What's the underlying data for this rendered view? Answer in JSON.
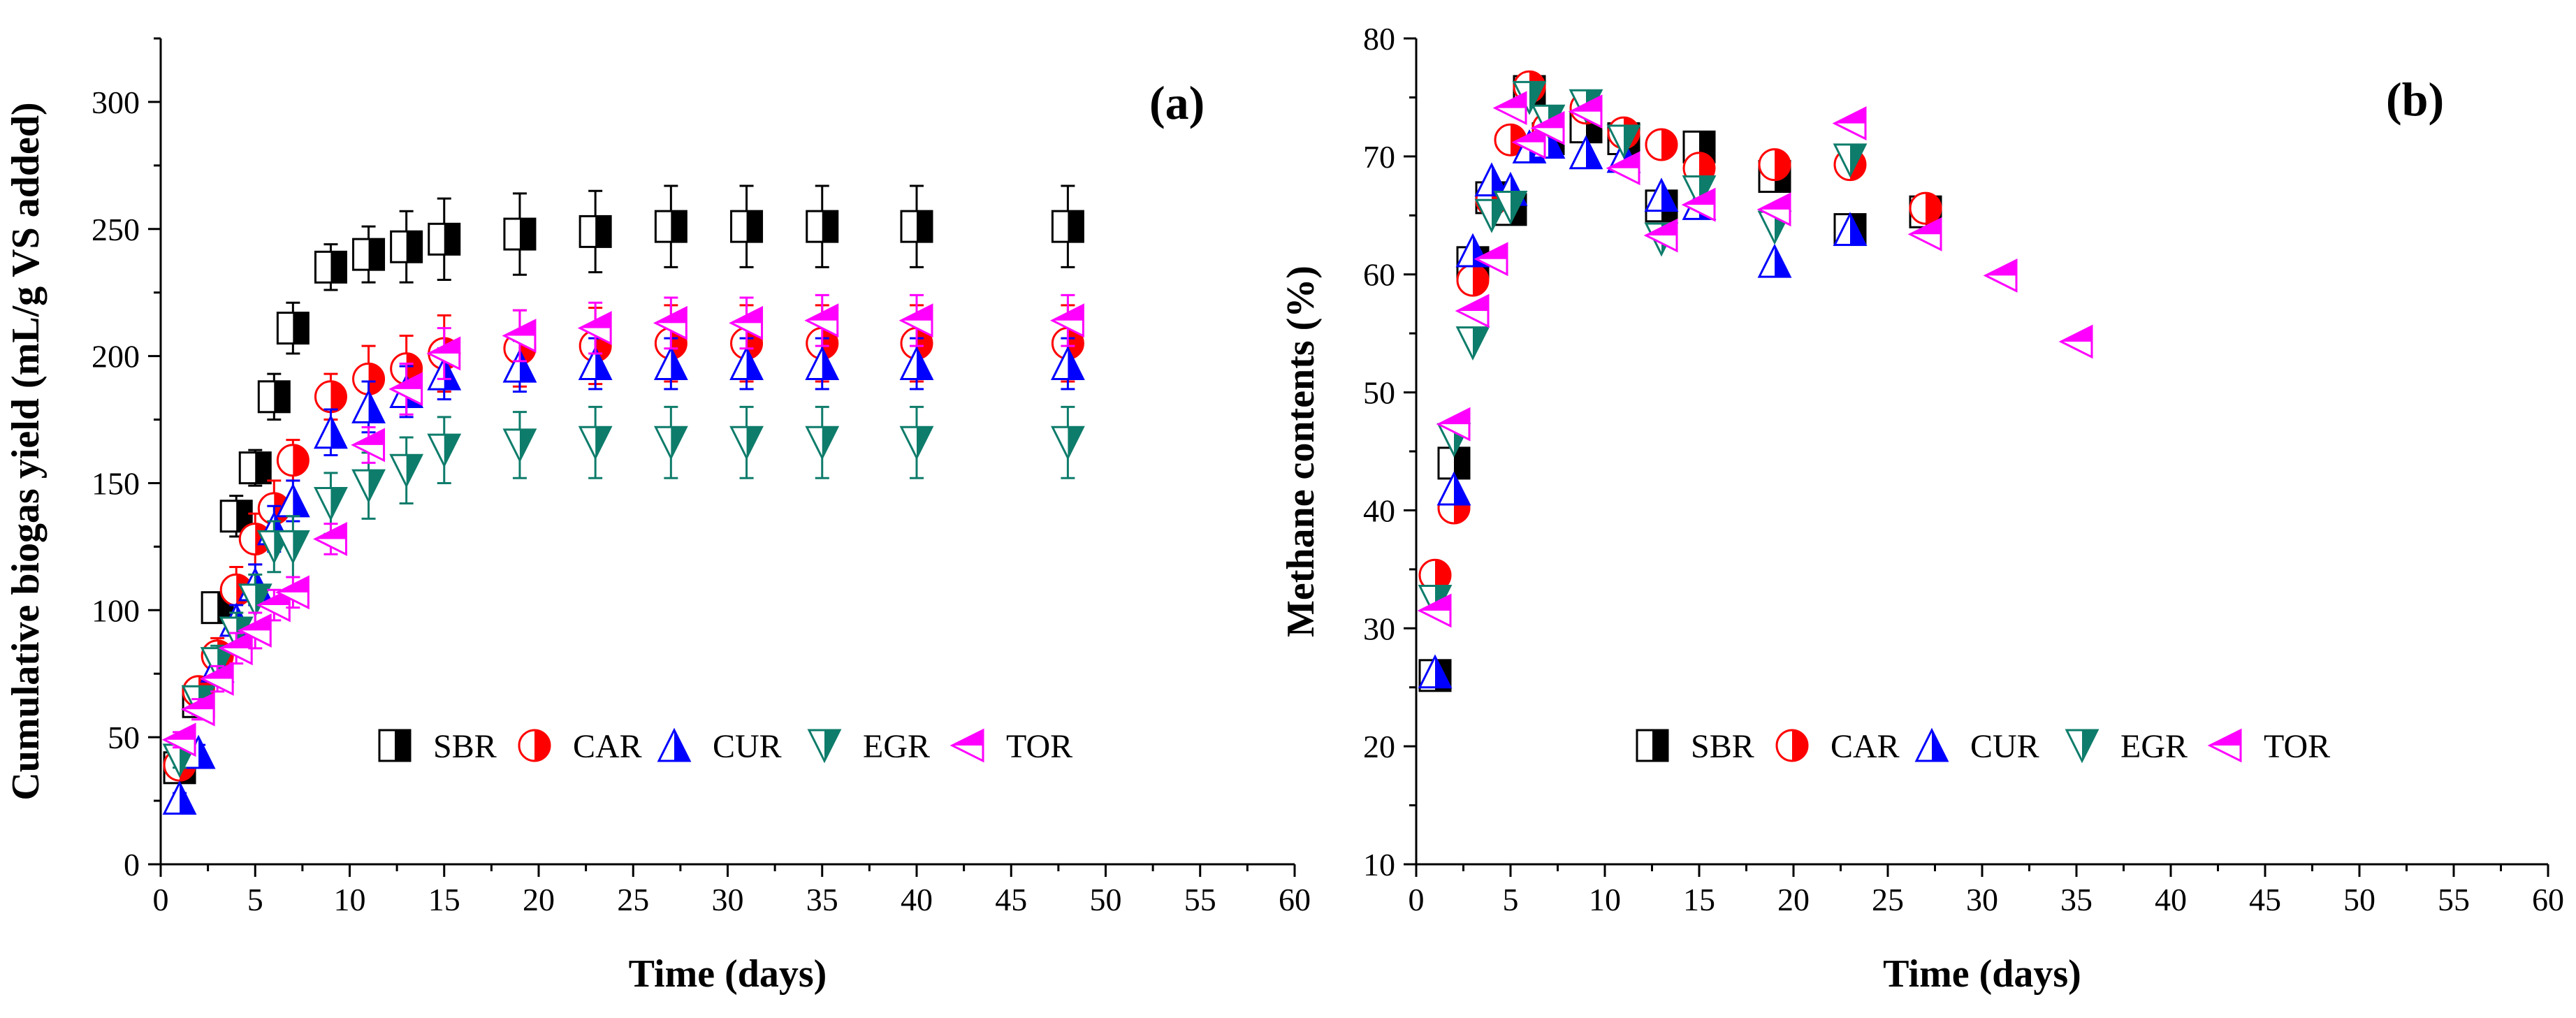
{
  "figure": {
    "panels": [
      "a",
      "b"
    ]
  },
  "legend_labels": [
    "SBR",
    "CAR",
    "CUR",
    "EGR",
    "TOR"
  ],
  "series_style": {
    "SBR": {
      "color": "#000000",
      "marker": "half-square"
    },
    "CAR": {
      "color": "#ff0000",
      "marker": "half-circle"
    },
    "CUR": {
      "color": "#0000ff",
      "marker": "half-triangle-up"
    },
    "EGR": {
      "color": "#0e7c6b",
      "marker": "half-triangle-down"
    },
    "TOR": {
      "color": "#ff00ff",
      "marker": "half-triangle-left"
    }
  },
  "chart_data": [
    {
      "type": "scatter",
      "panel_label": "(a)",
      "title": "",
      "xlabel": "Time (days)",
      "ylabel": "Cumulative biogas yield (mL/g VS added)",
      "xlim": [
        0,
        60
      ],
      "ylim": [
        0,
        325
      ],
      "xticks": [
        0,
        5,
        10,
        15,
        20,
        25,
        30,
        35,
        40,
        45,
        50,
        55,
        60
      ],
      "yticks": [
        0,
        50,
        100,
        150,
        200,
        250,
        300
      ],
      "legend_position": "lower-right",
      "series": [
        {
          "name": "SBR",
          "x": [
            1,
            2,
            3,
            4,
            5,
            6,
            7,
            9,
            11,
            13,
            15,
            19,
            23,
            27,
            31,
            35,
            40,
            48
          ],
          "y": [
            38,
            64,
            101,
            137,
            156,
            184,
            211,
            235,
            240,
            243,
            246,
            248,
            249,
            251,
            251,
            251,
            251,
            251
          ],
          "err": [
            4,
            4,
            6,
            8,
            7,
            9,
            10,
            9,
            11,
            14,
            16,
            16,
            16,
            16,
            16,
            16,
            16,
            16
          ]
        },
        {
          "name": "CAR",
          "x": [
            1,
            2,
            3,
            4,
            5,
            6,
            7,
            9,
            11,
            13,
            15,
            19,
            23,
            27,
            31,
            35,
            40,
            48
          ],
          "y": [
            39,
            68,
            82,
            108,
            128,
            140,
            159,
            184,
            191,
            195,
            201,
            203,
            204,
            205,
            205,
            205,
            205,
            205
          ],
          "err": [
            3,
            5,
            7,
            9,
            10,
            11,
            8,
            9,
            13,
            13,
            15,
            15,
            15,
            15,
            15,
            15,
            15,
            15
          ]
        },
        {
          "name": "CUR",
          "x": [
            1,
            2,
            3,
            4,
            5,
            6,
            7,
            9,
            11,
            13,
            15,
            19,
            23,
            27,
            31,
            35,
            40,
            48
          ],
          "y": [
            26,
            44,
            78,
            96,
            110,
            132,
            143,
            170,
            180,
            186,
            193,
            196,
            197,
            197,
            197,
            197,
            197,
            197
          ],
          "err": [
            2,
            3,
            5,
            6,
            8,
            9,
            8,
            9,
            10,
            10,
            10,
            10,
            10,
            10,
            10,
            10,
            10,
            10
          ]
        },
        {
          "name": "EGR",
          "x": [
            1,
            2,
            3,
            4,
            5,
            6,
            7,
            9,
            11,
            13,
            15,
            19,
            23,
            27,
            31,
            35,
            40,
            48
          ],
          "y": [
            41,
            64,
            79,
            91,
            104,
            125,
            125,
            142,
            149,
            155,
            163,
            165,
            166,
            166,
            166,
            166,
            166,
            166
          ],
          "err": [
            3,
            5,
            7,
            8,
            10,
            10,
            12,
            12,
            13,
            13,
            13,
            13,
            14,
            14,
            14,
            14,
            14,
            14
          ]
        },
        {
          "name": "TOR",
          "x": [
            1,
            2,
            3,
            4,
            5,
            6,
            7,
            9,
            11,
            13,
            15,
            19,
            23,
            27,
            31,
            35,
            40,
            48
          ],
          "y": [
            49,
            61,
            73,
            85,
            92,
            102,
            107,
            128,
            165,
            187,
            201,
            208,
            211,
            213,
            213,
            214,
            214,
            214
          ],
          "err": [
            3,
            4,
            5,
            6,
            7,
            6,
            6,
            6,
            7,
            10,
            10,
            10,
            10,
            10,
            10,
            10,
            10,
            10
          ]
        }
      ]
    },
    {
      "type": "scatter",
      "panel_label": "(b)",
      "title": "",
      "xlabel": "Time (days)",
      "ylabel": "Methane contents (%)",
      "xlim": [
        0,
        60
      ],
      "ylim": [
        10,
        80
      ],
      "xticks": [
        0,
        5,
        10,
        15,
        20,
        25,
        30,
        35,
        40,
        45,
        50,
        55,
        60
      ],
      "yticks": [
        10,
        20,
        30,
        40,
        50,
        60,
        70,
        80
      ],
      "legend_position": "lower-right",
      "series": [
        {
          "name": "SBR",
          "x": [
            1,
            2,
            3,
            4,
            5,
            6,
            7,
            9,
            11,
            13,
            15,
            19,
            23,
            27
          ],
          "y": [
            26,
            44,
            61,
            66.5,
            65.5,
            75.5,
            71.5,
            72.5,
            71.5,
            65.8,
            70.8,
            68.3,
            63.8,
            65.3
          ]
        },
        {
          "name": "CAR",
          "x": [
            1,
            2,
            3,
            4,
            5,
            6,
            7,
            9,
            11,
            13,
            15,
            19,
            23,
            27
          ],
          "y": [
            34.5,
            40.2,
            59.5,
            66.3,
            71.4,
            75.9,
            72.4,
            74.1,
            72,
            71,
            69,
            69.3,
            69.3,
            65.6
          ]
        },
        {
          "name": "CUR",
          "x": [
            1,
            2,
            3,
            4,
            5,
            6,
            7,
            9,
            11,
            13,
            15,
            19,
            23
          ],
          "y": [
            26.3,
            41.8,
            62,
            68,
            67.2,
            70.8,
            71.2,
            70.3,
            70,
            66.7,
            66,
            61.1,
            63.8
          ]
        },
        {
          "name": "EGR",
          "x": [
            1,
            2,
            3,
            4,
            5,
            6,
            7,
            9,
            11,
            13,
            15,
            19,
            23
          ],
          "y": [
            32.3,
            46,
            54.2,
            65,
            65.7,
            75,
            73,
            74.3,
            71.3,
            63,
            67,
            64,
            69.7
          ]
        },
        {
          "name": "TOR",
          "x": [
            1,
            2,
            3,
            4,
            5,
            6,
            7,
            9,
            11,
            13,
            15,
            19,
            23,
            27,
            31,
            35
          ],
          "y": [
            31.5,
            47.3,
            56.9,
            61.3,
            74.1,
            71.2,
            72.4,
            73.8,
            69,
            63.3,
            65.9,
            65.5,
            72.8,
            63.4,
            59.9,
            54.3
          ]
        }
      ]
    }
  ]
}
